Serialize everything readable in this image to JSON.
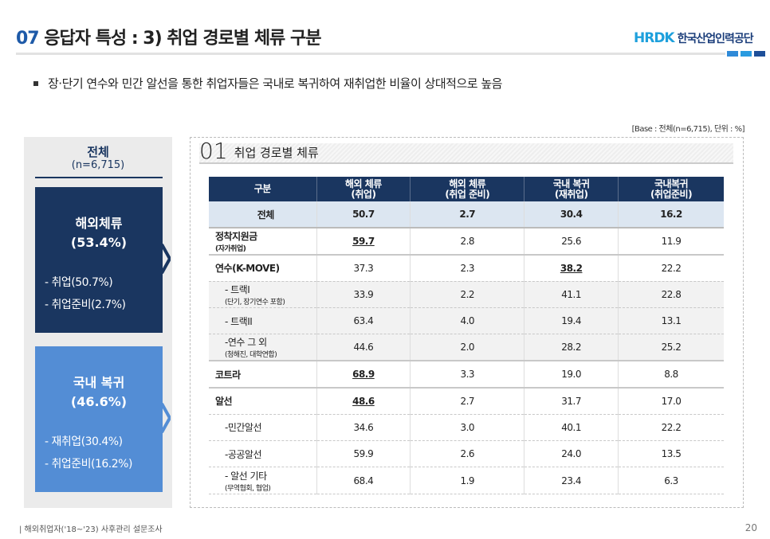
{
  "header": {
    "num": "07",
    "title": "응답자 특성 : 3) 취업 경로별 체류 구분",
    "logo_mark": "HRDK",
    "logo_text": "한국산업인력공단"
  },
  "colors": {
    "navy": "#1a3660",
    "blue": "#538dd5",
    "accent": "#1e5aa8"
  },
  "bullet": "장·단기 연수와 민간 알선을 통한 취업자들은 국내로 복귀하여 재취업한 비율이 상대적으로 높음",
  "base_note": "[Base : 전체(n=6,715), 단위 : %]",
  "left": {
    "title": "전체",
    "n": "(n=6,715)",
    "overseas": {
      "title": "해외체류",
      "pct": "(53.4%)",
      "items": [
        "- 취업(50.7%)",
        "- 취업준비(2.7%)"
      ]
    },
    "domestic": {
      "title": "국내 복귀",
      "pct": "(46.6%)",
      "items": [
        "- 재취업(30.4%)",
        "- 취업준비(16.2%)"
      ]
    }
  },
  "section": {
    "num": "01",
    "title": "취업 경로별 체류"
  },
  "table": {
    "headers": [
      [
        "구분"
      ],
      [
        "해외 체류",
        "(취업)"
      ],
      [
        "해외 체류",
        "(취업 준비)"
      ],
      [
        "국내 복귀",
        "(재취업)"
      ],
      [
        "국내복귀",
        "(취업준비)"
      ]
    ],
    "rows": [
      {
        "label": "전체",
        "sub": "",
        "values": [
          "50.7",
          "2.7",
          "30.4",
          "16.2"
        ]
      },
      {
        "label": "정착지원금",
        "sub": "(자가취업)",
        "values": [
          "59.7",
          "2.8",
          "25.6",
          "11.9"
        ]
      },
      {
        "label": "연수(K-MOVE)",
        "sub": "",
        "values": [
          "37.3",
          "2.3",
          "38.2",
          "22.2"
        ]
      },
      {
        "label": "- 트랙I",
        "sub": "(단기, 장기연수 포함)",
        "values": [
          "33.9",
          "2.2",
          "41.1",
          "22.8"
        ]
      },
      {
        "label": "- 트랙II",
        "sub": "",
        "values": [
          "63.4",
          "4.0",
          "19.4",
          "13.1"
        ]
      },
      {
        "label": "-연수 그 외",
        "sub": "(청해진, 대학연합)",
        "values": [
          "44.6",
          "2.0",
          "28.2",
          "25.2"
        ]
      },
      {
        "label": "코트라",
        "sub": "",
        "values": [
          "68.9",
          "3.3",
          "19.0",
          "8.8"
        ]
      },
      {
        "label": "알선",
        "sub": "",
        "values": [
          "48.6",
          "2.7",
          "31.7",
          "17.0"
        ]
      },
      {
        "label": "-민간알선",
        "sub": "",
        "values": [
          "34.6",
          "3.0",
          "40.1",
          "22.2"
        ]
      },
      {
        "label": "-공공알선",
        "sub": "",
        "values": [
          "59.9",
          "2.6",
          "24.0",
          "13.5"
        ]
      },
      {
        "label": "- 알선 기타",
        "sub": "(무역협회, 협업)",
        "values": [
          "68.4",
          "1.9",
          "23.4",
          "6.3"
        ]
      }
    ]
  },
  "footer": {
    "source": "| 해외취업자('18~'23) 사후관리 설문조사",
    "page": "20"
  }
}
